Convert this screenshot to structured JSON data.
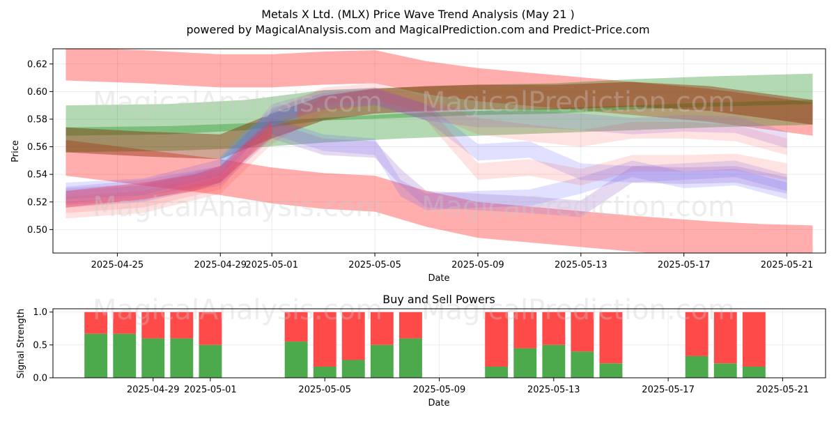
{
  "header": {
    "title": "Metals X Ltd. (MLX) Price Wave Trend Analysis (May 21 )",
    "subtitle": "powered by MagicalAnalysis.com and MagicalPrediction.com and Predict-Price.com"
  },
  "watermarks": [
    "MagicalAnalysis.com",
    "MagicalPrediction.com"
  ],
  "chart_data": [
    {
      "type": "area",
      "title": "",
      "xlabel": "Date",
      "ylabel": "Price",
      "ylim": [
        0.483,
        0.631
      ],
      "xlim": [
        "2025-04-22T12:00",
        "2025-05-22T12:00"
      ],
      "grid": true,
      "x_ticks": [
        "2025-04-25",
        "2025-04-29",
        "2025-05-01",
        "2025-05-05",
        "2025-05-09",
        "2025-05-13",
        "2025-05-17",
        "2025-05-21"
      ],
      "y_ticks": [
        0.5,
        0.52,
        0.54,
        0.56,
        0.58,
        0.6,
        0.62
      ],
      "series": [
        {
          "color": "#ff0000",
          "opacity": 0.32,
          "width": 0.024,
          "x": [
            "2025-04-23",
            "2025-04-26",
            "2025-04-29",
            "2025-05-01",
            "2025-05-03",
            "2025-05-05",
            "2025-05-07",
            "2025-05-09",
            "2025-05-12",
            "2025-05-15",
            "2025-05-18",
            "2025-05-20",
            "2025-05-22"
          ],
          "y": [
            0.62,
            0.618,
            0.615,
            0.615,
            0.617,
            0.618,
            0.61,
            0.605,
            0.6,
            0.595,
            0.59,
            0.585,
            0.58
          ]
        },
        {
          "color": "#ff0000",
          "opacity": 0.32,
          "width": 0.026,
          "x": [
            "2025-04-23",
            "2025-04-26",
            "2025-04-29",
            "2025-05-01",
            "2025-05-03",
            "2025-05-05",
            "2025-05-07",
            "2025-05-09",
            "2025-05-12",
            "2025-05-15",
            "2025-05-18",
            "2025-05-20",
            "2025-05-22"
          ],
          "y": [
            0.552,
            0.545,
            0.538,
            0.532,
            0.528,
            0.526,
            0.515,
            0.507,
            0.502,
            0.497,
            0.493,
            0.491,
            0.49
          ]
        },
        {
          "color": "#008000",
          "opacity": 0.3,
          "width": 0.022,
          "x": [
            "2025-04-23",
            "2025-04-27",
            "2025-04-30",
            "2025-05-03",
            "2025-05-06",
            "2025-05-09",
            "2025-05-12",
            "2025-05-15",
            "2025-05-18",
            "2025-05-20",
            "2025-05-22"
          ],
          "y": [
            0.579,
            0.58,
            0.583,
            0.59,
            0.592,
            0.594,
            0.595,
            0.598,
            0.6,
            0.601,
            0.602
          ]
        },
        {
          "color": "#008000",
          "opacity": 0.3,
          "width": 0.018,
          "x": [
            "2025-04-23",
            "2025-04-27",
            "2025-04-30",
            "2025-05-03",
            "2025-05-06",
            "2025-05-09",
            "2025-05-12",
            "2025-05-15",
            "2025-05-18",
            "2025-05-20",
            "2025-05-22"
          ],
          "y": [
            0.565,
            0.566,
            0.568,
            0.572,
            0.575,
            0.577,
            0.579,
            0.581,
            0.583,
            0.584,
            0.585
          ]
        },
        {
          "color": "#8b2500",
          "opacity": 0.42,
          "width": 0.018,
          "x": [
            "2025-04-23",
            "2025-04-26",
            "2025-04-29",
            "2025-05-01",
            "2025-05-03",
            "2025-05-05",
            "2025-05-07",
            "2025-05-09",
            "2025-05-12",
            "2025-05-15",
            "2025-05-18",
            "2025-05-20",
            "2025-05-22"
          ],
          "y": [
            0.565,
            0.562,
            0.56,
            0.575,
            0.588,
            0.593,
            0.595,
            0.596,
            0.596,
            0.598,
            0.595,
            0.59,
            0.585
          ]
        },
        {
          "color": "#4444ff",
          "opacity": 0.16,
          "width": 0.012,
          "x": [
            "2025-04-23",
            "2025-04-26",
            "2025-04-29",
            "2025-05-01",
            "2025-05-03",
            "2025-05-05",
            "2025-05-07",
            "2025-05-09",
            "2025-05-11",
            "2025-05-13",
            "2025-05-15",
            "2025-05-17",
            "2025-05-19",
            "2025-05-21"
          ],
          "y": [
            0.528,
            0.531,
            0.545,
            0.582,
            0.593,
            0.596,
            0.585,
            0.556,
            0.558,
            0.542,
            0.54,
            0.542,
            0.544,
            0.534
          ]
        },
        {
          "color": "#4444ff",
          "opacity": 0.16,
          "width": 0.012,
          "x": [
            "2025-04-23",
            "2025-04-26",
            "2025-04-29",
            "2025-05-01",
            "2025-05-03",
            "2025-05-05",
            "2025-05-06",
            "2025-05-07",
            "2025-05-09",
            "2025-05-11",
            "2025-05-13",
            "2025-05-15",
            "2025-05-17",
            "2025-05-19",
            "2025-05-21"
          ],
          "y": [
            0.524,
            0.527,
            0.54,
            0.575,
            0.563,
            0.56,
            0.53,
            0.52,
            0.522,
            0.523,
            0.532,
            0.544,
            0.536,
            0.538,
            0.528
          ]
        },
        {
          "color": "#ff3333",
          "opacity": 0.14,
          "width": 0.012,
          "x": [
            "2025-04-23",
            "2025-04-26",
            "2025-04-29",
            "2025-05-01",
            "2025-05-03",
            "2025-05-05",
            "2025-05-07",
            "2025-05-09",
            "2025-05-11",
            "2025-05-13",
            "2025-05-15",
            "2025-05-17",
            "2025-05-19",
            "2025-05-21"
          ],
          "y": [
            0.518,
            0.522,
            0.535,
            0.58,
            0.597,
            0.6,
            0.59,
            0.575,
            0.57,
            0.566,
            0.572,
            0.572,
            0.57,
            0.56
          ]
        },
        {
          "color": "#ff3333",
          "opacity": 0.14,
          "width": 0.012,
          "x": [
            "2025-04-23",
            "2025-04-26",
            "2025-04-29",
            "2025-05-01",
            "2025-05-03",
            "2025-05-05",
            "2025-05-07",
            "2025-05-09",
            "2025-05-11",
            "2025-05-13",
            "2025-05-15",
            "2025-05-17",
            "2025-05-19",
            "2025-05-21"
          ],
          "y": [
            0.514,
            0.518,
            0.532,
            0.568,
            0.59,
            0.597,
            0.585,
            0.542,
            0.545,
            0.538,
            0.548,
            0.548,
            0.549,
            0.542
          ]
        },
        {
          "color": "#9966cc",
          "opacity": 0.22,
          "width": 0.012,
          "x": [
            "2025-04-23",
            "2025-04-26",
            "2025-04-29",
            "2025-05-01",
            "2025-05-03",
            "2025-05-05",
            "2025-05-07",
            "2025-05-09",
            "2025-05-11",
            "2025-05-13",
            "2025-05-15",
            "2025-05-17",
            "2025-05-19",
            "2025-05-21"
          ],
          "y": [
            0.525,
            0.53,
            0.54,
            0.585,
            0.595,
            0.597,
            0.585,
            0.58,
            0.58,
            0.578,
            0.575,
            0.577,
            0.576,
            0.565
          ]
        },
        {
          "color": "#9966cc",
          "opacity": 0.25,
          "width": 0.012,
          "x": [
            "2025-04-23",
            "2025-04-26",
            "2025-04-29",
            "2025-05-01",
            "2025-05-03",
            "2025-05-05",
            "2025-05-06",
            "2025-05-07",
            "2025-05-09",
            "2025-05-11",
            "2025-05-13",
            "2025-05-15",
            "2025-05-17",
            "2025-05-19",
            "2025-05-21"
          ],
          "y": [
            0.522,
            0.526,
            0.538,
            0.572,
            0.56,
            0.558,
            0.538,
            0.522,
            0.52,
            0.518,
            0.515,
            0.54,
            0.539,
            0.54,
            0.532
          ]
        },
        {
          "color": "#33aaff",
          "opacity": 0.28,
          "width": 0.01,
          "x": [
            "2025-04-29",
            "2025-04-30",
            "2025-05-01",
            "2025-05-02"
          ],
          "y": [
            0.548,
            0.567,
            0.58,
            0.585
          ]
        },
        {
          "color": "#ff3333",
          "opacity": 0.35,
          "width": 0.012,
          "x": [
            "2025-04-23",
            "2025-04-26",
            "2025-04-28",
            "2025-04-29",
            "2025-04-30",
            "2025-05-01"
          ],
          "y": [
            0.522,
            0.528,
            0.534,
            0.54,
            0.557,
            0.573
          ]
        }
      ]
    },
    {
      "type": "bar",
      "title": "Buy and Sell Powers",
      "xlabel": "Date",
      "ylabel": "Signal Strength",
      "ylim": [
        0,
        1.05
      ],
      "xlim": [
        "2025-04-25T12:00",
        "2025-05-22T12:00"
      ],
      "grid": true,
      "x_ticks": [
        "2025-04-29",
        "2025-05-01",
        "2025-05-05",
        "2025-05-09",
        "2025-05-13",
        "2025-05-17",
        "2025-05-21"
      ],
      "y_ticks": [
        0.0,
        0.5,
        1.0
      ],
      "buy_color": "#4caa4c",
      "sell_color": "#ff4a4a",
      "categories": [
        "2025-04-27",
        "2025-04-28",
        "2025-04-29",
        "2025-04-30",
        "2025-05-01",
        "2025-05-04",
        "2025-05-05",
        "2025-05-06",
        "2025-05-07",
        "2025-05-08",
        "2025-05-11",
        "2025-05-12",
        "2025-05-13",
        "2025-05-14",
        "2025-05-15",
        "2025-05-18",
        "2025-05-19",
        "2025-05-20"
      ],
      "series": [
        {
          "values": [
            0.67,
            0.67,
            0.6,
            0.6,
            0.5,
            0.55,
            0.17,
            0.27,
            0.5,
            0.6,
            0.17,
            0.45,
            0.5,
            0.4,
            0.22,
            0.33,
            0.22,
            0.17
          ]
        },
        {
          "values": [
            0.33,
            0.33,
            0.4,
            0.4,
            0.5,
            0.45,
            0.83,
            0.73,
            0.5,
            0.4,
            0.83,
            0.55,
            0.5,
            0.6,
            0.78,
            0.67,
            0.78,
            0.83
          ]
        }
      ]
    }
  ]
}
